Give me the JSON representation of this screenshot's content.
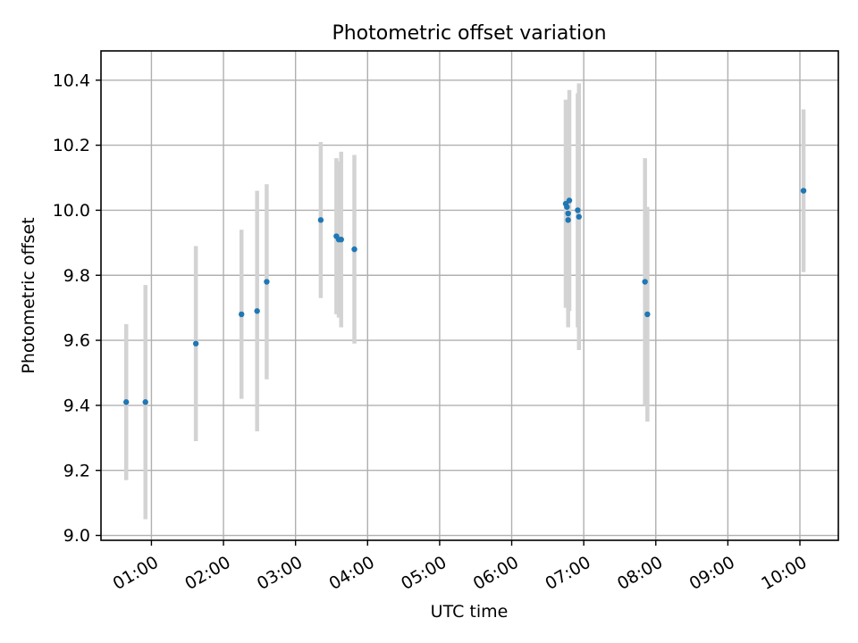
{
  "chart_data": {
    "type": "scatter",
    "title": "Photometric offset variation",
    "xlabel": "UTC time",
    "ylabel": "Photometric offset",
    "grid": true,
    "x_ticks": [
      "01:00",
      "02:00",
      "03:00",
      "04:00",
      "05:00",
      "06:00",
      "07:00",
      "08:00",
      "09:00",
      "10:00"
    ],
    "x_range": [
      "00:18",
      "10:32"
    ],
    "y_ticks": [
      "9.0",
      "9.2",
      "9.4",
      "9.6",
      "9.8",
      "10.0",
      "10.2",
      "10.4"
    ],
    "ylim": [
      8.985,
      10.49
    ],
    "colors": {
      "marker": "#1f77b4",
      "errorbar": "#d3d3d3"
    },
    "points": [
      {
        "time": "00:39",
        "value": 9.41,
        "err": 0.24
      },
      {
        "time": "00:55",
        "value": 9.41,
        "err": 0.36
      },
      {
        "time": "01:37",
        "value": 9.59,
        "err": 0.3
      },
      {
        "time": "02:15",
        "value": 9.68,
        "err": 0.26
      },
      {
        "time": "02:28",
        "value": 9.69,
        "err": 0.37
      },
      {
        "time": "02:36",
        "value": 9.78,
        "err": 0.3
      },
      {
        "time": "03:21",
        "value": 9.97,
        "err": 0.24
      },
      {
        "time": "03:34",
        "value": 9.92,
        "err": 0.24
      },
      {
        "time": "03:36",
        "value": 9.91,
        "err": 0.24
      },
      {
        "time": "03:38",
        "value": 9.91,
        "err": 0.27
      },
      {
        "time": "03:49",
        "value": 9.88,
        "err": 0.29
      },
      {
        "time": "06:45",
        "value": 10.02,
        "err": 0.32
      },
      {
        "time": "06:46",
        "value": 10.01,
        "err": 0.3
      },
      {
        "time": "06:47",
        "value": 9.99,
        "err": 0.31
      },
      {
        "time": "06:47",
        "value": 9.97,
        "err": 0.33
      },
      {
        "time": "06:48",
        "value": 10.03,
        "err": 0.34
      },
      {
        "time": "06:55",
        "value": 10.0,
        "err": 0.36
      },
      {
        "time": "06:56",
        "value": 9.98,
        "err": 0.41
      },
      {
        "time": "07:51",
        "value": 9.78,
        "err": 0.38
      },
      {
        "time": "07:53",
        "value": 9.68,
        "err": 0.33
      },
      {
        "time": "10:03",
        "value": 10.06,
        "err": 0.25
      }
    ]
  }
}
